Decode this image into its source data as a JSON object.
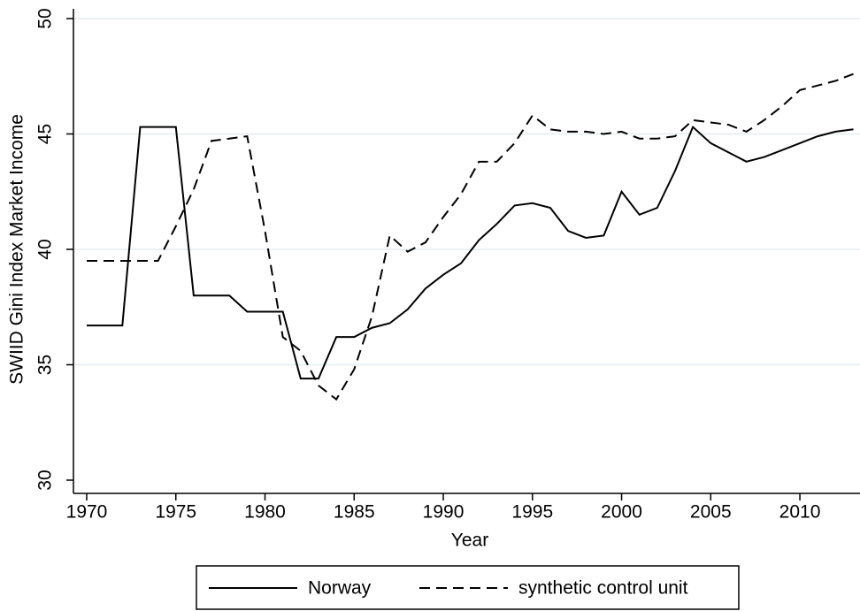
{
  "chart_data": {
    "type": "line",
    "xlabel": "Year",
    "ylabel": "SWIID Gini Index Market Income",
    "x": [
      1970,
      1971,
      1972,
      1973,
      1974,
      1975,
      1976,
      1977,
      1978,
      1979,
      1980,
      1981,
      1982,
      1983,
      1984,
      1985,
      1986,
      1987,
      1988,
      1989,
      1990,
      1991,
      1992,
      1993,
      1994,
      1995,
      1996,
      1997,
      1998,
      1999,
      2000,
      2001,
      2002,
      2003,
      2004,
      2005,
      2006,
      2007,
      2008,
      2009,
      2010,
      2011,
      2012,
      2013
    ],
    "series": [
      {
        "name": "Norway",
        "color": "#000000",
        "dash": "solid",
        "values": [
          36.7,
          36.7,
          36.7,
          45.3,
          45.3,
          45.3,
          38.0,
          38.0,
          38.0,
          37.3,
          37.3,
          37.3,
          34.4,
          34.4,
          36.2,
          36.2,
          36.6,
          36.8,
          37.4,
          38.3,
          38.9,
          39.4,
          40.4,
          41.1,
          41.9,
          42.0,
          41.8,
          40.8,
          40.5,
          40.6,
          42.5,
          41.5,
          41.8,
          43.4,
          45.3,
          44.6,
          44.2,
          43.8,
          44.0,
          44.3,
          44.6,
          44.9,
          45.1,
          45.2
        ]
      },
      {
        "name": "synthetic control unit",
        "color": "#000000",
        "dash": "dashed",
        "values": [
          39.5,
          39.5,
          39.5,
          39.5,
          39.5,
          41.0,
          42.6,
          44.7,
          44.8,
          44.9,
          40.8,
          36.2,
          35.6,
          34.1,
          33.5,
          34.8,
          37.1,
          40.6,
          39.9,
          40.3,
          41.4,
          42.4,
          43.8,
          43.8,
          44.6,
          45.8,
          45.2,
          45.1,
          45.1,
          45.0,
          45.1,
          44.8,
          44.8,
          44.9,
          45.6,
          45.5,
          45.4,
          45.1,
          45.6,
          46.2,
          46.9,
          47.1,
          47.3,
          47.6
        ]
      }
    ],
    "xlim": [
      1970,
      2013
    ],
    "xticks": [
      1970,
      1975,
      1980,
      1985,
      1990,
      1995,
      2000,
      2005,
      2010
    ],
    "ylim": [
      30,
      50
    ],
    "yticks": [
      30,
      35,
      40,
      45,
      50
    ],
    "grid": true,
    "legend": "bottom"
  }
}
